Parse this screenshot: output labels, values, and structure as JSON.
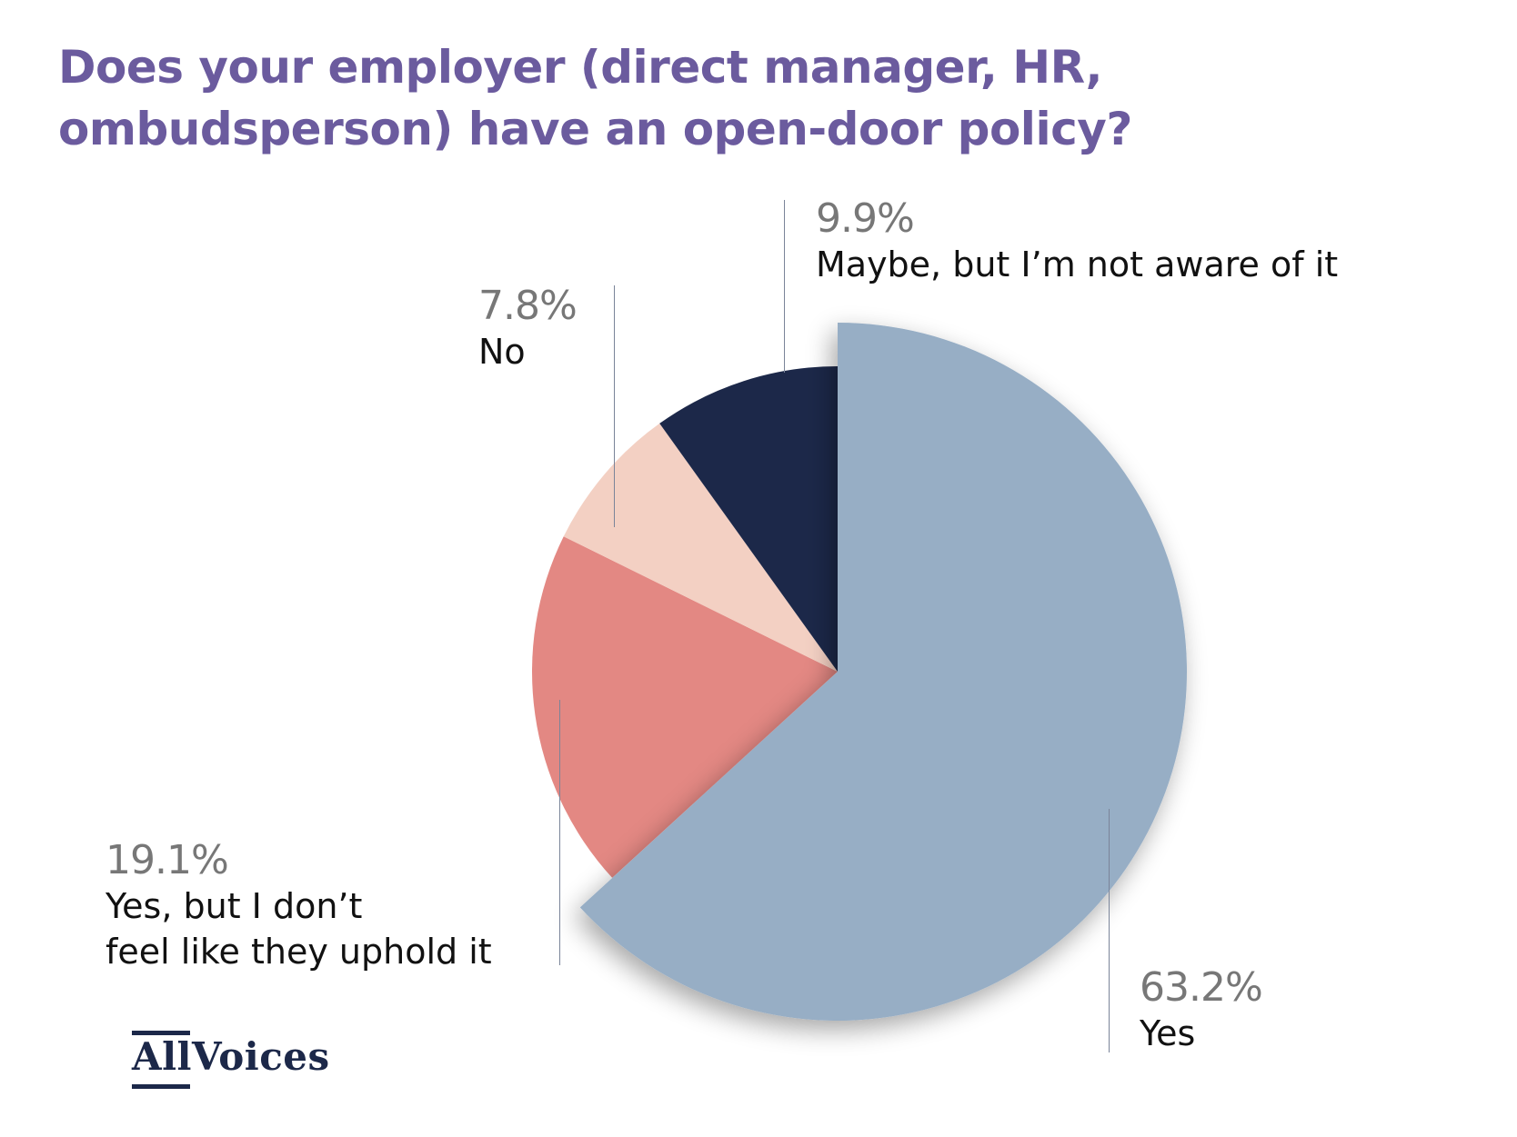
{
  "title": {
    "line1": "Does your employer (direct manager, HR,",
    "line2": "ombudsperson) have an open-door policy?"
  },
  "colors": {
    "title": "#6b5b9e",
    "yes": "#97aec5",
    "yes_but": "#e38883",
    "no": "#f3d0c3",
    "maybe": "#1c2849",
    "pct_text": "#777777",
    "label_text": "#111111",
    "leader": "#7a8499"
  },
  "labels": {
    "maybe": {
      "pct": "9.9%",
      "name": "Maybe, but I’m not aware of it"
    },
    "no": {
      "pct": "7.8%",
      "name": "No"
    },
    "yes_but": {
      "pct": "19.1%",
      "name_line1": "Yes, but I don’t",
      "name_line2": "feel like they uphold it"
    },
    "yes": {
      "pct": "63.2%",
      "name": "Yes"
    }
  },
  "logo": {
    "part1": "All",
    "part2": "Voices"
  },
  "chart_data": {
    "type": "pie",
    "title": "Does your employer (direct manager, HR, ombudsperson) have an open-door policy?",
    "categories": [
      "Yes",
      "Yes, but I don’t feel like they uphold it",
      "No",
      "Maybe, but I’m not aware of it"
    ],
    "values": [
      63.2,
      19.1,
      7.8,
      9.9
    ],
    "unit": "%",
    "colors": [
      "#97aec5",
      "#e38883",
      "#f3d0c3",
      "#1c2849"
    ],
    "start_angle": "12 o'clock, clockwise",
    "highlighted_slice": "Yes",
    "legend": "none (direct labels with leader lines)"
  }
}
